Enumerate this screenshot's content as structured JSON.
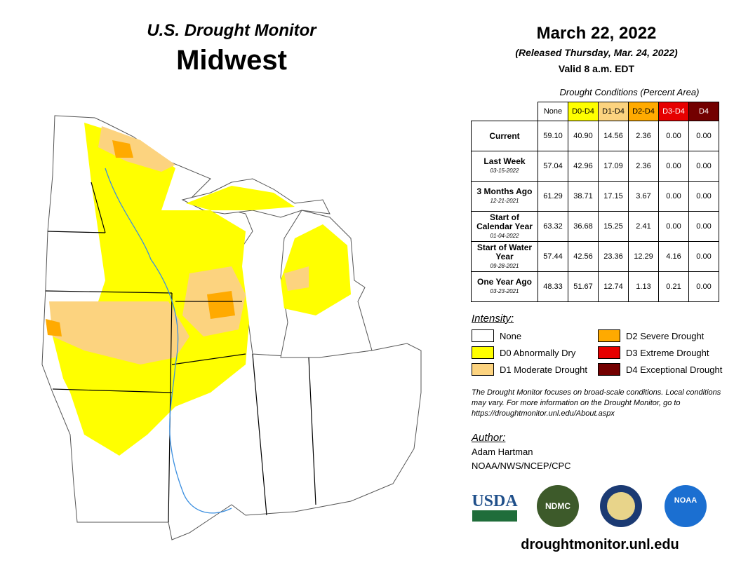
{
  "header": {
    "title": "U.S. Drought Monitor",
    "region": "Midwest"
  },
  "date": {
    "date": "March 22, 2022",
    "released": "(Released Thursday, Mar. 24, 2022)",
    "valid": "Valid 8 a.m. EDT"
  },
  "table": {
    "caption": "Drought Conditions (Percent Area)",
    "columns": [
      {
        "label": "None",
        "color": "#ffffff",
        "text_color": "#000000"
      },
      {
        "label": "D0-D4",
        "color": "#ffff00",
        "text_color": "#000000"
      },
      {
        "label": "D1-D4",
        "color": "#fcd37f",
        "text_color": "#000000"
      },
      {
        "label": "D2-D4",
        "color": "#ffaa00",
        "text_color": "#000000"
      },
      {
        "label": "D3-D4",
        "color": "#e60000",
        "text_color": "#ffffff"
      },
      {
        "label": "D4",
        "color": "#730000",
        "text_color": "#ffffff"
      }
    ],
    "rows": [
      {
        "label": "Current",
        "date": null,
        "values": [
          "59.10",
          "40.90",
          "14.56",
          "2.36",
          "0.00",
          "0.00"
        ]
      },
      {
        "label": "Last Week",
        "date": "03-15-2022",
        "values": [
          "57.04",
          "42.96",
          "17.09",
          "2.36",
          "0.00",
          "0.00"
        ]
      },
      {
        "label": "3 Months Ago",
        "date": "12-21-2021",
        "values": [
          "61.29",
          "38.71",
          "17.15",
          "3.67",
          "0.00",
          "0.00"
        ]
      },
      {
        "label": "Start of Calendar Year",
        "date": "01-04-2022",
        "values": [
          "63.32",
          "36.68",
          "15.25",
          "2.41",
          "0.00",
          "0.00"
        ]
      },
      {
        "label": "Start of Water Year",
        "date": "09-28-2021",
        "values": [
          "57.44",
          "42.56",
          "23.36",
          "12.29",
          "4.16",
          "0.00"
        ]
      },
      {
        "label": "One Year Ago",
        "date": "03-23-2021",
        "values": [
          "48.33",
          "51.67",
          "12.74",
          "1.13",
          "0.21",
          "0.00"
        ]
      }
    ]
  },
  "legend": {
    "title": "Intensity:",
    "items": [
      {
        "label": "None",
        "color": "#ffffff"
      },
      {
        "label": "D0 Abnormally Dry",
        "color": "#ffff00"
      },
      {
        "label": "D1 Moderate Drought",
        "color": "#fcd37f"
      },
      {
        "label": "D2 Severe Drought",
        "color": "#ffaa00"
      },
      {
        "label": "D3 Extreme Drought",
        "color": "#e60000"
      },
      {
        "label": "D4 Exceptional Drought",
        "color": "#730000"
      }
    ]
  },
  "note": "The Drought Monitor focuses on broad-scale conditions. Local conditions may vary. For more information on the Drought Monitor, go to https://droughtmonitor.unl.edu/About.aspx",
  "author": {
    "heading": "Author:",
    "name": "Adam Hartman",
    "org": "NOAA/NWS/NCEP/CPC"
  },
  "logos": [
    "USDA",
    "NDMC",
    "NOAA"
  ],
  "website": "droughtmonitor.unl.edu"
}
